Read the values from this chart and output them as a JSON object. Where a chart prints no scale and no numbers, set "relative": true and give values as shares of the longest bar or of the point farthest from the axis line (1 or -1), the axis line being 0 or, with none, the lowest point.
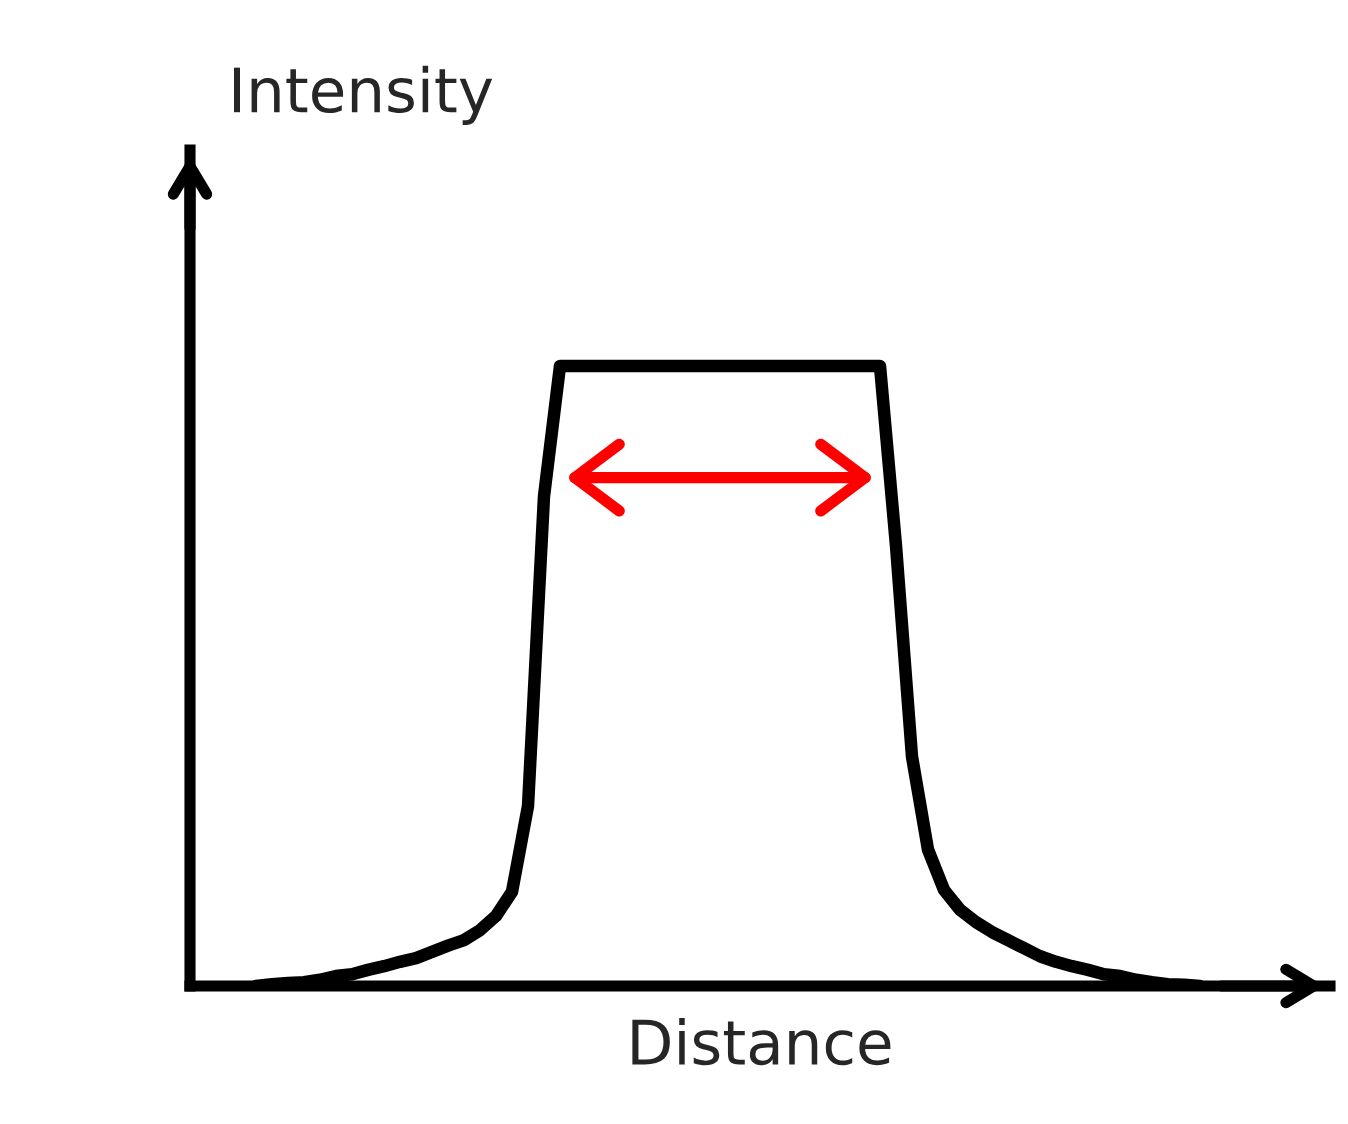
{
  "chart_data": {
    "type": "line",
    "relative": true,
    "xlabel": "Distance",
    "ylabel": "Intensity",
    "color": "#000000",
    "categories": [
      null,
      null,
      null,
      null,
      null,
      null,
      null,
      null,
      null,
      null,
      null,
      null,
      null,
      null,
      null,
      null,
      null,
      null,
      null,
      null,
      null,
      null,
      null,
      null,
      null,
      null,
      null,
      null,
      null,
      null,
      null,
      null,
      null,
      null,
      null,
      null,
      null,
      null,
      null,
      null,
      null,
      null,
      null,
      null,
      null,
      null,
      null,
      null,
      null,
      null,
      null,
      null,
      null,
      null,
      null,
      null,
      null,
      null,
      null,
      null
    ],
    "values": [
      0,
      0.003,
      0.005,
      0.006,
      0.01,
      0.016,
      0.019,
      0.026,
      0.032,
      0.039,
      0.045,
      0.055,
      0.065,
      0.074,
      0.09,
      0.113,
      0.152,
      0.29,
      0.79,
      1,
      1,
      1,
      1,
      1,
      1,
      1,
      1,
      1,
      1,
      1,
      1,
      1,
      1,
      1,
      1,
      1,
      1,
      1,
      1,
      1,
      0.71,
      0.37,
      0.22,
      0.155,
      0.123,
      0.103,
      0.087,
      0.074,
      0.061,
      0.048,
      0.039,
      0.032,
      0.026,
      0.019,
      0.016,
      0.01,
      0.006,
      0.003,
      0.002,
      0
    ]
  }
}
